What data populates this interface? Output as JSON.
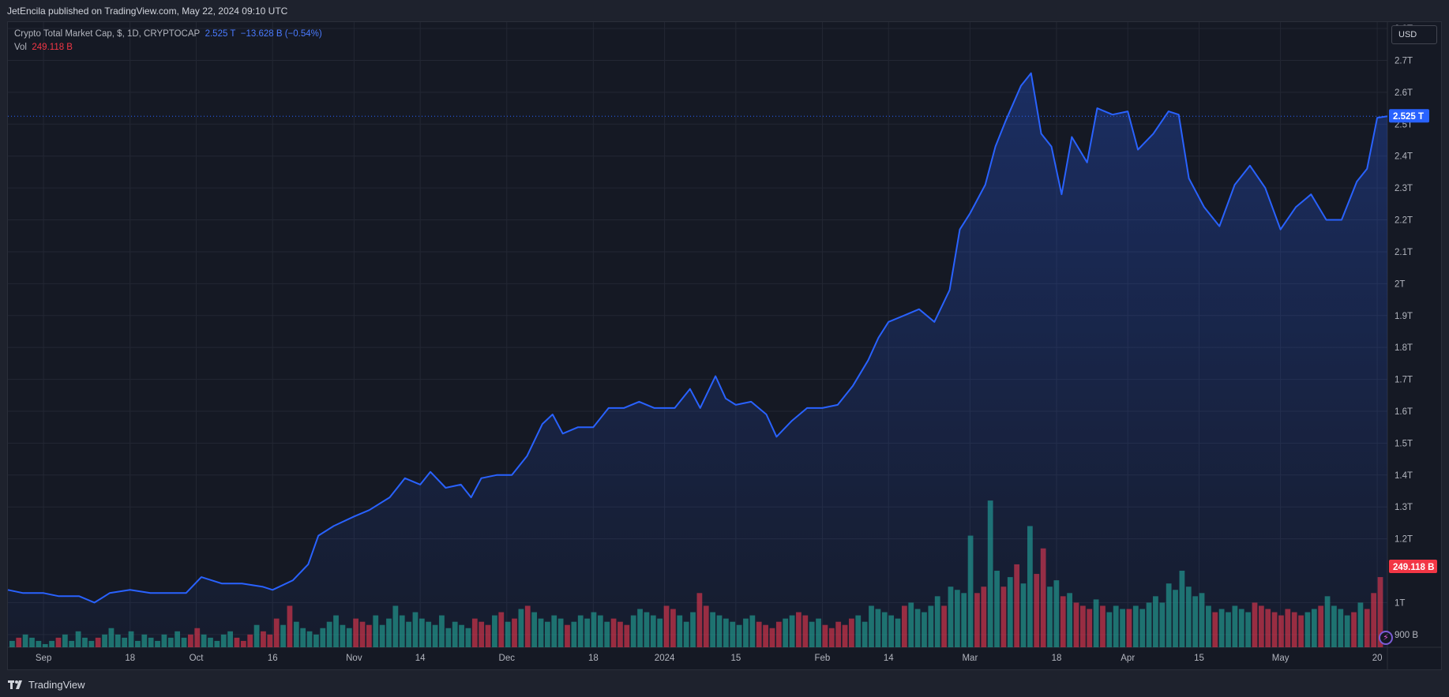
{
  "header": {
    "publish_text": "JetEncila published on TradingView.com, May 22, 2024 09:10 UTC"
  },
  "legend": {
    "symbol": "Crypto Total Market Cap, $, 1D, CRYPTOCAP",
    "last": "2.525 T",
    "change": "−13.628 B (−0.54%)",
    "vol_label": "Vol",
    "vol_value": "249.118 B"
  },
  "currency": "USD",
  "footer": {
    "brand": "TradingView"
  },
  "colors": {
    "line": "#2962ff",
    "vol_up": "#22ab94",
    "vol_down": "#f23645",
    "grid": "#232733"
  },
  "chart_data": {
    "type": "area",
    "y_unit": "T",
    "ylim": [
      0.86,
      2.82
    ],
    "y_ticks": [
      {
        "v": 0.9,
        "label": "900 B"
      },
      {
        "v": 1.0,
        "label": "1T"
      },
      {
        "v": 1.2,
        "label": "1.2T"
      },
      {
        "v": 1.3,
        "label": "1.3T"
      },
      {
        "v": 1.4,
        "label": "1.4T"
      },
      {
        "v": 1.5,
        "label": "1.5T"
      },
      {
        "v": 1.6,
        "label": "1.6T"
      },
      {
        "v": 1.7,
        "label": "1.7T"
      },
      {
        "v": 1.8,
        "label": "1.8T"
      },
      {
        "v": 1.9,
        "label": "1.9T"
      },
      {
        "v": 2.0,
        "label": "2T"
      },
      {
        "v": 2.1,
        "label": "2.1T"
      },
      {
        "v": 2.2,
        "label": "2.2T"
      },
      {
        "v": 2.3,
        "label": "2.3T"
      },
      {
        "v": 2.4,
        "label": "2.4T"
      },
      {
        "v": 2.5,
        "label": "2.5T"
      },
      {
        "v": 2.6,
        "label": "2.6T"
      },
      {
        "v": 2.7,
        "label": "2.7T"
      },
      {
        "v": 2.8,
        "label": "2.8T"
      }
    ],
    "x_ticks": [
      {
        "label": "Sep",
        "date": "2023-09-01"
      },
      {
        "label": "18",
        "date": "2023-09-18"
      },
      {
        "label": "Oct",
        "date": "2023-10-01"
      },
      {
        "label": "16",
        "date": "2023-10-16"
      },
      {
        "label": "Nov",
        "date": "2023-11-01"
      },
      {
        "label": "14",
        "date": "2023-11-14"
      },
      {
        "label": "Dec",
        "date": "2023-12-01"
      },
      {
        "label": "18",
        "date": "2023-12-18"
      },
      {
        "label": "2024",
        "date": "2024-01-01"
      },
      {
        "label": "15",
        "date": "2024-01-15"
      },
      {
        "label": "Feb",
        "date": "2024-02-01"
      },
      {
        "label": "14",
        "date": "2024-02-14"
      },
      {
        "label": "Mar",
        "date": "2024-03-01"
      },
      {
        "label": "18",
        "date": "2024-03-18"
      },
      {
        "label": "Apr",
        "date": "2024-04-01"
      },
      {
        "label": "15",
        "date": "2024-04-15"
      },
      {
        "label": "May",
        "date": "2024-05-01"
      },
      {
        "label": "20",
        "date": "2024-05-20"
      }
    ],
    "x_range": [
      "2023-08-25",
      "2024-05-22"
    ],
    "series": [
      {
        "type": "line",
        "points": [
          [
            "2023-08-25",
            1.04
          ],
          [
            "2023-08-28",
            1.03
          ],
          [
            "2023-09-01",
            1.03
          ],
          [
            "2023-09-04",
            1.02
          ],
          [
            "2023-09-08",
            1.02
          ],
          [
            "2023-09-11",
            1.0
          ],
          [
            "2023-09-14",
            1.03
          ],
          [
            "2023-09-18",
            1.04
          ],
          [
            "2023-09-22",
            1.03
          ],
          [
            "2023-09-26",
            1.03
          ],
          [
            "2023-09-29",
            1.03
          ],
          [
            "2023-10-02",
            1.08
          ],
          [
            "2023-10-06",
            1.06
          ],
          [
            "2023-10-10",
            1.06
          ],
          [
            "2023-10-14",
            1.05
          ],
          [
            "2023-10-16",
            1.04
          ],
          [
            "2023-10-20",
            1.07
          ],
          [
            "2023-10-23",
            1.12
          ],
          [
            "2023-10-25",
            1.21
          ],
          [
            "2023-10-28",
            1.24
          ],
          [
            "2023-11-01",
            1.27
          ],
          [
            "2023-11-04",
            1.29
          ],
          [
            "2023-11-08",
            1.33
          ],
          [
            "2023-11-11",
            1.39
          ],
          [
            "2023-11-14",
            1.37
          ],
          [
            "2023-11-16",
            1.41
          ],
          [
            "2023-11-19",
            1.36
          ],
          [
            "2023-11-22",
            1.37
          ],
          [
            "2023-11-24",
            1.33
          ],
          [
            "2023-11-26",
            1.39
          ],
          [
            "2023-11-29",
            1.4
          ],
          [
            "2023-12-02",
            1.4
          ],
          [
            "2023-12-05",
            1.46
          ],
          [
            "2023-12-08",
            1.56
          ],
          [
            "2023-12-10",
            1.59
          ],
          [
            "2023-12-12",
            1.53
          ],
          [
            "2023-12-15",
            1.55
          ],
          [
            "2023-12-18",
            1.55
          ],
          [
            "2023-12-21",
            1.61
          ],
          [
            "2023-12-24",
            1.61
          ],
          [
            "2023-12-27",
            1.63
          ],
          [
            "2023-12-30",
            1.61
          ],
          [
            "2024-01-03",
            1.61
          ],
          [
            "2024-01-06",
            1.67
          ],
          [
            "2024-01-08",
            1.61
          ],
          [
            "2024-01-11",
            1.71
          ],
          [
            "2024-01-13",
            1.64
          ],
          [
            "2024-01-15",
            1.62
          ],
          [
            "2024-01-18",
            1.63
          ],
          [
            "2024-01-21",
            1.59
          ],
          [
            "2024-01-23",
            1.52
          ],
          [
            "2024-01-26",
            1.57
          ],
          [
            "2024-01-29",
            1.61
          ],
          [
            "2024-02-01",
            1.61
          ],
          [
            "2024-02-04",
            1.62
          ],
          [
            "2024-02-07",
            1.68
          ],
          [
            "2024-02-10",
            1.76
          ],
          [
            "2024-02-12",
            1.83
          ],
          [
            "2024-02-14",
            1.88
          ],
          [
            "2024-02-17",
            1.9
          ],
          [
            "2024-02-20",
            1.92
          ],
          [
            "2024-02-23",
            1.88
          ],
          [
            "2024-02-26",
            1.98
          ],
          [
            "2024-02-28",
            2.17
          ],
          [
            "2024-03-01",
            2.22
          ],
          [
            "2024-03-04",
            2.31
          ],
          [
            "2024-03-06",
            2.43
          ],
          [
            "2024-03-08",
            2.51
          ],
          [
            "2024-03-11",
            2.62
          ],
          [
            "2024-03-13",
            2.66
          ],
          [
            "2024-03-15",
            2.47
          ],
          [
            "2024-03-17",
            2.43
          ],
          [
            "2024-03-19",
            2.28
          ],
          [
            "2024-03-21",
            2.46
          ],
          [
            "2024-03-24",
            2.38
          ],
          [
            "2024-03-26",
            2.55
          ],
          [
            "2024-03-29",
            2.53
          ],
          [
            "2024-04-01",
            2.54
          ],
          [
            "2024-04-03",
            2.42
          ],
          [
            "2024-04-06",
            2.47
          ],
          [
            "2024-04-09",
            2.54
          ],
          [
            "2024-04-11",
            2.53
          ],
          [
            "2024-04-13",
            2.33
          ],
          [
            "2024-04-16",
            2.24
          ],
          [
            "2024-04-19",
            2.18
          ],
          [
            "2024-04-22",
            2.31
          ],
          [
            "2024-04-25",
            2.37
          ],
          [
            "2024-04-28",
            2.3
          ],
          [
            "2024-05-01",
            2.17
          ],
          [
            "2024-05-04",
            2.24
          ],
          [
            "2024-05-07",
            2.28
          ],
          [
            "2024-05-10",
            2.2
          ],
          [
            "2024-05-13",
            2.2
          ],
          [
            "2024-05-16",
            2.32
          ],
          [
            "2024-05-18",
            2.36
          ],
          [
            "2024-05-20",
            2.52
          ],
          [
            "2024-05-22",
            2.525
          ]
        ]
      }
    ],
    "price_line": {
      "value": 2.525,
      "label": "2.525 T"
    },
    "volume": {
      "label": "249.118 B",
      "bar_values_T": [
        0.88,
        0.89,
        0.9,
        0.89,
        0.88,
        0.87,
        0.88,
        0.89,
        0.9,
        0.88,
        0.91,
        0.89,
        0.88,
        0.89,
        0.9,
        0.92,
        0.9,
        0.89,
        0.91,
        0.88,
        0.9,
        0.89,
        0.88,
        0.9,
        0.89,
        0.91,
        0.89,
        0.9,
        0.92,
        0.9,
        0.89,
        0.88,
        0.9,
        0.91,
        0.89,
        0.88,
        0.9,
        0.93,
        0.91,
        0.9,
        0.95,
        0.93,
        0.99,
        0.94,
        0.92,
        0.91,
        0.9,
        0.92,
        0.94,
        0.96,
        0.93,
        0.92,
        0.95,
        0.94,
        0.93,
        0.96,
        0.93,
        0.95,
        0.99,
        0.96,
        0.94,
        0.97,
        0.95,
        0.94,
        0.93,
        0.96,
        0.92,
        0.94,
        0.93,
        0.92,
        0.95,
        0.94,
        0.93,
        0.96,
        0.97,
        0.94,
        0.95,
        0.98,
        0.99,
        0.97,
        0.95,
        0.94,
        0.96,
        0.95,
        0.93,
        0.94,
        0.96,
        0.95,
        0.97,
        0.96,
        0.94,
        0.95,
        0.94,
        0.93,
        0.96,
        0.98,
        0.97,
        0.96,
        0.95,
        0.99,
        0.98,
        0.96,
        0.94,
        0.97,
        1.03,
        0.99,
        0.97,
        0.96,
        0.95,
        0.94,
        0.93,
        0.95,
        0.96,
        0.94,
        0.93,
        0.92,
        0.94,
        0.95,
        0.96,
        0.97,
        0.96,
        0.94,
        0.95,
        0.93,
        0.92,
        0.94,
        0.93,
        0.95,
        0.96,
        0.94,
        0.99,
        0.98,
        0.97,
        0.96,
        0.95,
        0.99,
        1.0,
        0.98,
        0.97,
        0.99,
        1.02,
        0.99,
        1.05,
        1.04,
        1.03,
        1.21,
        1.03,
        1.05,
        1.32,
        1.1,
        1.05,
        1.08,
        1.12,
        1.06,
        1.24,
        1.09,
        1.17,
        1.05,
        1.07,
        1.02,
        1.03,
        1.0,
        0.99,
        0.98,
        1.01,
        0.99,
        0.97,
        0.99,
        0.98,
        0.98,
        0.99,
        0.98,
        1.0,
        1.02,
        1.0,
        1.06,
        1.04,
        1.1,
        1.05,
        1.02,
        1.03,
        0.99,
        0.97,
        0.98,
        0.97,
        0.99,
        0.98,
        0.97,
        1.0,
        0.99,
        0.98,
        0.97,
        0.96,
        0.98,
        0.97,
        0.96,
        0.97,
        0.98,
        0.99,
        1.02,
        0.99,
        0.98,
        0.96,
        0.97,
        1.0,
        0.98,
        1.03,
        1.08
      ]
    }
  }
}
